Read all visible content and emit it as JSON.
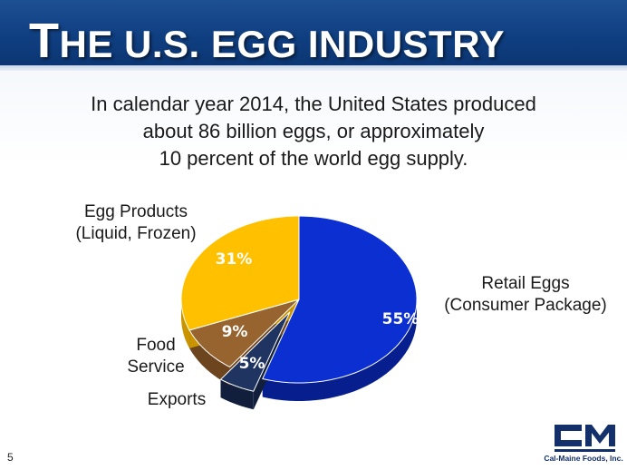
{
  "header": {
    "title_first": "T",
    "title_rest": "HE U.S. EGG INDUSTRY"
  },
  "subtitle": {
    "line1": "In calendar year 2014, the United States produced",
    "line2": "about 86 billion eggs, or approximately",
    "line3": "10 percent of the world egg supply."
  },
  "chart_data": {
    "type": "pie",
    "title": "",
    "slices": [
      {
        "label_lines": [
          "Retail Eggs",
          "(Consumer Package)"
        ],
        "value": 55,
        "value_label": "55%",
        "color": "#0b2fd1",
        "side_color": "#071f8e",
        "exploded": false
      },
      {
        "label_lines": [
          "Exports"
        ],
        "value": 5,
        "value_label": "5%",
        "color": "#1f3460",
        "side_color": "#121f3c",
        "exploded": true
      },
      {
        "label_lines": [
          "Food",
          "Service"
        ],
        "value": 9,
        "value_label": "9%",
        "color": "#97632f",
        "side_color": "#6c451f",
        "exploded": false
      },
      {
        "label_lines": [
          "Egg Products",
          "(Liquid, Frozen)"
        ],
        "value": 31,
        "value_label": "31%",
        "color": "#ffc000",
        "side_color": "#c99400",
        "exploded": false
      }
    ],
    "legend": "none",
    "style": "3d-tilted"
  },
  "footer": {
    "page_number": "5",
    "logo_caption": "Cal-Maine Foods, Inc."
  }
}
